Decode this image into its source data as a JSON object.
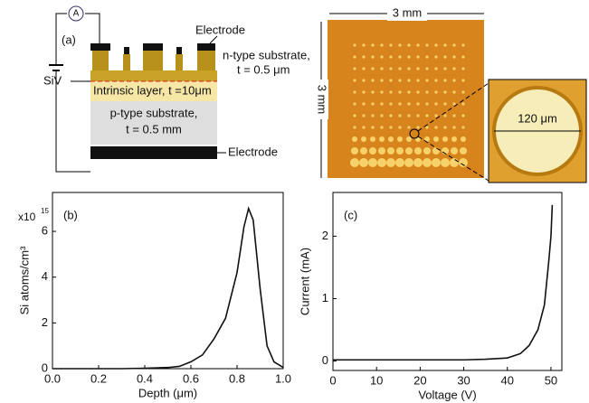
{
  "diagram": {
    "panel_label": "(a)",
    "ammeter": "A",
    "top_electrode": "Electrode",
    "n_layer": [
      "n-type substrate,",
      "t = 0.5 μm"
    ],
    "siv": "SiV",
    "intrinsic_layer": "Intrinsic layer, t =10μm",
    "p_layer": [
      "p-type substrate,",
      "t = 0.5 mm"
    ],
    "bottom_electrode": "Electrode"
  },
  "photo": {
    "width_label": "3 mm",
    "height_label": "3 mm",
    "inset_label": "120 μm"
  },
  "chart_data": [
    {
      "type": "line",
      "panel_label": "(b)",
      "xlabel": "Depth (μm)",
      "ylabel": "Si  atoms/cm³",
      "multiplier": "x10",
      "multiplier_exp": "15",
      "x": [
        0.0,
        0.1,
        0.2,
        0.3,
        0.4,
        0.5,
        0.55,
        0.6,
        0.65,
        0.7,
        0.75,
        0.8,
        0.83,
        0.85,
        0.87,
        0.9,
        0.93,
        0.96,
        1.0
      ],
      "series": [
        {
          "color": "#111111",
          "values": [
            0.0,
            0.0,
            0.0,
            0.0,
            0.02,
            0.05,
            0.1,
            0.3,
            0.6,
            1.3,
            2.2,
            4.2,
            6.2,
            7.0,
            6.5,
            3.5,
            1.0,
            0.3,
            0.05
          ]
        }
      ],
      "xlim": [
        0.0,
        1.0
      ],
      "ylim": [
        0,
        7.7
      ],
      "xticks": [
        {
          "value": 0,
          "label": "0.0"
        },
        0.2,
        0.4,
        0.6,
        0.8,
        {
          "value": 1,
          "label": "1.0"
        }
      ],
      "yticks": [
        0,
        2,
        4,
        6
      ]
    },
    {
      "type": "line",
      "panel_label": "(c)",
      "xlabel": "Voltage (V)",
      "ylabel": "Current (mA)",
      "x": [
        0,
        10,
        20,
        30,
        35,
        40,
        43,
        45,
        47,
        48.5,
        49.5,
        50,
        50.3
      ],
      "series": [
        {
          "color": "#111111",
          "values": [
            0.02,
            0.02,
            0.02,
            0.02,
            0.03,
            0.05,
            0.12,
            0.25,
            0.5,
            0.9,
            1.6,
            2.0,
            2.5
          ]
        }
      ],
      "xlim": [
        0,
        52.5
      ],
      "ylim": [
        -0.15,
        2.7
      ],
      "xticks": [
        0,
        10,
        20,
        30,
        40,
        50
      ],
      "yticks": [
        0,
        1,
        2
      ]
    }
  ]
}
